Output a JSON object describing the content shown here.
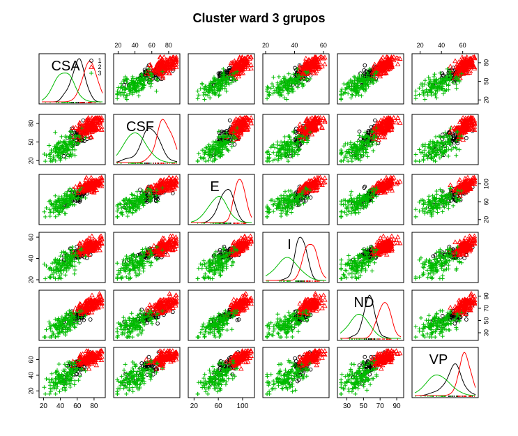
{
  "chart_data": {
    "type": "scatter",
    "title": "Cluster ward 3 grupos",
    "variables": [
      "CSA",
      "CSF",
      "E",
      "I",
      "ND",
      "VP"
    ],
    "ranges": {
      "CSA": [
        18,
        90
      ],
      "CSF": [
        18,
        90
      ],
      "E": [
        15,
        115
      ],
      "I": [
        20,
        62
      ],
      "ND": [
        22,
        95
      ],
      "VP": [
        15,
        72
      ]
    },
    "axis_ticks": {
      "CSA": [
        "20",
        "40",
        "60",
        "80"
      ],
      "CSF": [
        "20",
        "50",
        "80"
      ],
      "E": [
        "20",
        "60",
        "100"
      ],
      "I": [
        "20",
        "40",
        "60"
      ],
      "ND": [
        "30",
        "50",
        "70",
        "90"
      ],
      "VP": [
        "20",
        "40",
        "60"
      ],
      "right_top": [
        "20",
        "50",
        "80"
      ],
      "top_CSF": [
        "20",
        "40",
        "60",
        "80"
      ]
    },
    "grid": false,
    "legend": {
      "position": "top-right",
      "entries": [
        "1",
        "2",
        "3"
      ]
    },
    "series": [
      {
        "name": "1",
        "color": "#000000",
        "marker": "circle",
        "means": {
          "CSA": 60,
          "CSF": 58,
          "E": 75,
          "I": 45,
          "ND": 57,
          "VP": 52
        },
        "sds": {
          "CSA": 7,
          "CSF": 10,
          "E": 10,
          "I": 4,
          "ND": 6,
          "VP": 7
        },
        "n": 60
      },
      {
        "name": "2",
        "color": "#ff0000",
        "marker": "triangle",
        "means": {
          "CSA": 75,
          "CSF": 75,
          "E": 95,
          "I": 51,
          "ND": 75,
          "VP": 62
        },
        "sds": {
          "CSA": 7,
          "CSF": 8,
          "E": 8,
          "I": 4,
          "ND": 7,
          "VP": 5
        },
        "n": 150
      },
      {
        "name": "3",
        "color": "#00bb00",
        "marker": "plus",
        "means": {
          "CSA": 45,
          "CSF": 42,
          "E": 60,
          "I": 35,
          "ND": 45,
          "VP": 38
        },
        "sds": {
          "CSA": 9,
          "CSF": 11,
          "E": 14,
          "I": 7,
          "ND": 10,
          "VP": 10
        },
        "n": 140
      }
    ]
  }
}
